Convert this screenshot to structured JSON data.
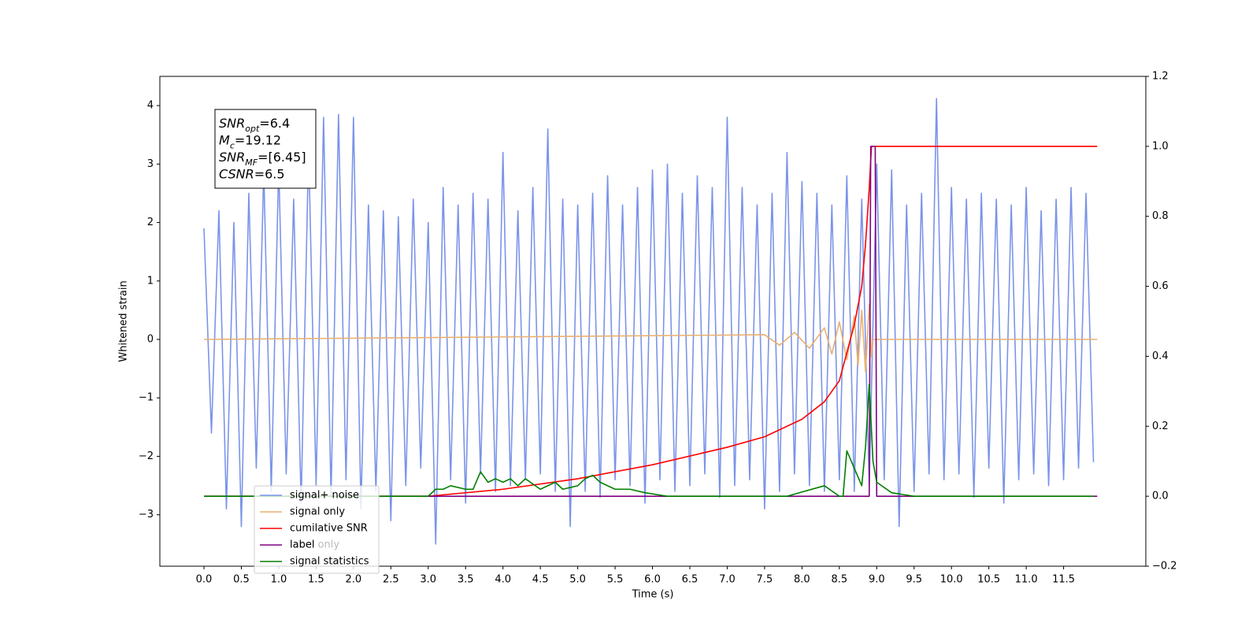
{
  "chart_data": {
    "type": "line",
    "xlabel": "Time (s)",
    "ylabel": "Whitened strain",
    "xlim": [
      -0.59,
      12.6
    ],
    "ylim": [
      -3.88,
      4.5
    ],
    "y2lim": [
      -0.2,
      1.2
    ],
    "xticks": [
      {
        "value": 0,
        "label": "0.0"
      },
      {
        "value": 0.5,
        "label": "0.5"
      },
      {
        "value": 1,
        "label": "1.0"
      },
      {
        "value": 1.5,
        "label": "1.5"
      },
      {
        "value": 2,
        "label": "2.0"
      },
      {
        "value": 2.5,
        "label": "2.5"
      },
      {
        "value": 3,
        "label": "3.0"
      },
      {
        "value": 3.5,
        "label": "3.5"
      },
      {
        "value": 4,
        "label": "4.0"
      },
      {
        "value": 4.5,
        "label": "4.5"
      },
      {
        "value": 5,
        "label": "5.0"
      },
      {
        "value": 5.5,
        "label": "5.5"
      },
      {
        "value": 6,
        "label": "6.0"
      },
      {
        "value": 6.5,
        "label": "6.5"
      },
      {
        "value": 7,
        "label": "7.0"
      },
      {
        "value": 7.5,
        "label": "7.5"
      },
      {
        "value": 8,
        "label": "8.0"
      },
      {
        "value": 8.5,
        "label": "8.5"
      },
      {
        "value": 9,
        "label": "9.0"
      },
      {
        "value": 9.5,
        "label": "9.5"
      },
      {
        "value": 10,
        "label": "10.0"
      },
      {
        "value": 10.5,
        "label": "10.5"
      },
      {
        "value": 11,
        "label": "11.0"
      },
      {
        "value": 11.5,
        "label": "11.5"
      }
    ],
    "yticks": [
      {
        "value": -3,
        "label": "−3"
      },
      {
        "value": -2,
        "label": "−2"
      },
      {
        "value": -1,
        "label": "−1"
      },
      0,
      1,
      2,
      3,
      4
    ],
    "y2ticks": [
      {
        "value": -0.2,
        "label": "−0.2"
      },
      {
        "value": 0,
        "label": "0.0"
      },
      {
        "value": 0.2,
        "label": "0.2"
      },
      {
        "value": 0.4,
        "label": "0.4"
      },
      {
        "value": 0.6,
        "label": "0.6"
      },
      {
        "value": 0.8,
        "label": "0.8"
      },
      {
        "value": 1,
        "label": "1.0"
      },
      {
        "value": 1.2,
        "label": "1.2"
      }
    ],
    "legend": "lower left",
    "hidden_legend_entry": "label only",
    "stats_box": [
      {
        "name": "SNR",
        "sub": "opt",
        "text": "=6.4"
      },
      {
        "name": "M",
        "sub": "c",
        "text": "=19.12"
      },
      {
        "name": "SNR",
        "sub": "MF",
        "text": "=[6.45]"
      },
      {
        "name": "CSNR",
        "text": "=6.5"
      }
    ],
    "series": [
      {
        "name": "signal+ noise",
        "color": "#7b94e8",
        "axis": "y",
        "x": [
          0,
          0.1,
          0.2,
          0.3,
          0.4,
          0.5,
          0.6,
          0.7,
          0.8,
          0.9,
          1,
          1.1,
          1.2,
          1.3,
          1.4,
          1.5,
          1.6,
          1.7,
          1.8,
          1.9,
          2,
          2.1,
          2.2,
          2.3,
          2.4,
          2.5,
          2.6,
          2.7,
          2.8,
          2.9,
          3,
          3.1,
          3.2,
          3.3,
          3.4,
          3.5,
          3.6,
          3.7,
          3.8,
          3.9,
          4,
          4.1,
          4.2,
          4.3,
          4.4,
          4.5,
          4.6,
          4.7,
          4.8,
          4.9,
          5,
          5.1,
          5.2,
          5.3,
          5.4,
          5.5,
          5.6,
          5.7,
          5.8,
          5.9,
          6,
          6.1,
          6.2,
          6.3,
          6.4,
          6.5,
          6.6,
          6.7,
          6.8,
          6.9,
          7,
          7.1,
          7.2,
          7.3,
          7.4,
          7.5,
          7.6,
          7.7,
          7.8,
          7.9,
          8,
          8.1,
          8.2,
          8.3,
          8.4,
          8.5,
          8.6,
          8.7,
          8.8,
          8.9,
          9,
          9.1,
          9.2,
          9.3,
          9.4,
          9.5,
          9.6,
          9.7,
          9.8,
          9.9,
          10,
          10.1,
          10.2,
          10.3,
          10.4,
          10.5,
          10.6,
          10.7,
          10.8,
          10.9,
          11,
          11.1,
          11.2,
          11.3,
          11.4,
          11.5,
          11.6,
          11.7,
          11.8,
          11.9
        ],
        "values": [
          1.9,
          -1.6,
          2.2,
          -2.9,
          2.0,
          -3.2,
          2.5,
          -2.2,
          2.9,
          -2.6,
          3.0,
          -2.3,
          2.4,
          -2.8,
          3.3,
          -2.5,
          3.8,
          -2.7,
          3.85,
          -2.4,
          3.8,
          -2.9,
          2.3,
          -2.6,
          2.2,
          -3.1,
          2.1,
          -2.5,
          2.4,
          -2.2,
          2.0,
          -3.5,
          2.6,
          -2.4,
          2.3,
          -2.8,
          2.5,
          -2.3,
          2.4,
          -2.6,
          3.2,
          -2.5,
          2.2,
          -2.4,
          2.6,
          -2.3,
          3.6,
          -2.6,
          2.4,
          -3.2,
          2.3,
          -2.6,
          2.5,
          -2.7,
          2.8,
          -2.4,
          2.3,
          -2.5,
          2.6,
          -2.8,
          2.9,
          -2.4,
          3.0,
          -2.6,
          2.5,
          -2.5,
          2.8,
          -2.3,
          2.6,
          -2.7,
          3.8,
          -2.5,
          2.6,
          -2.4,
          2.3,
          -2.9,
          2.5,
          -2.6,
          3.2,
          -2.3,
          2.7,
          -2.5,
          2.5,
          -2.6,
          2.3,
          -2.4,
          2.8,
          -2.6,
          2.4,
          -2.5,
          3.0,
          -2.4,
          2.9,
          -3.2,
          2.3,
          -2.6,
          2.5,
          -2.3,
          4.12,
          -2.4,
          2.6,
          -2.3,
          2.4,
          -2.7,
          2.5,
          -2.2,
          2.4,
          -2.8,
          2.3,
          -2.4,
          2.6,
          -2.3,
          2.2,
          -2.5,
          2.4,
          -2.4,
          2.6,
          -2.2,
          2.5,
          -2.1
        ]
      },
      {
        "name": "signal only",
        "color": "#e8b070",
        "axis": "y",
        "x": [
          0,
          7.5,
          7.7,
          7.9,
          8.1,
          8.3,
          8.4,
          8.5,
          8.6,
          8.7,
          8.75,
          8.8,
          8.85,
          8.9,
          8.93,
          8.95,
          11.95
        ],
        "values": [
          0,
          0.08,
          -0.1,
          0.12,
          -0.15,
          0.2,
          -0.25,
          0.3,
          -0.35,
          0.4,
          -0.45,
          0.5,
          -0.55,
          0.6,
          -0.3,
          0,
          0
        ]
      },
      {
        "name": "cumilative SNR",
        "color": "#ff0000",
        "axis": "y2",
        "x": [
          0,
          3,
          4,
          5,
          6,
          7,
          7.5,
          8,
          8.3,
          8.5,
          8.7,
          8.8,
          8.85,
          8.9,
          8.93,
          8.95,
          11.95
        ],
        "values": [
          0,
          0,
          0.02,
          0.05,
          0.09,
          0.14,
          0.17,
          0.22,
          0.27,
          0.33,
          0.49,
          0.6,
          0.72,
          0.88,
          1.0,
          1.0,
          1.0
        ]
      },
      {
        "name": "label",
        "color": "#800080",
        "axis": "y2",
        "x": [
          0,
          8.9,
          8.92,
          8.98,
          9.0,
          11.95
        ],
        "values": [
          0,
          0,
          1,
          1,
          0,
          0
        ]
      },
      {
        "name": "signal statistics",
        "color": "#008000",
        "axis": "y2",
        "x": [
          0,
          3.0,
          3.1,
          3.2,
          3.3,
          3.5,
          3.6,
          3.7,
          3.8,
          3.9,
          4.0,
          4.1,
          4.2,
          4.3,
          4.5,
          4.7,
          4.8,
          5.0,
          5.1,
          5.2,
          5.3,
          5.5,
          5.7,
          5.9,
          6.2,
          7.8,
          8.3,
          8.5,
          8.55,
          8.6,
          8.7,
          8.8,
          8.85,
          8.9,
          8.95,
          9.0,
          9.2,
          9.5,
          11.9
        ],
        "values": [
          0,
          0,
          0.02,
          0.02,
          0.03,
          0.02,
          0.02,
          0.07,
          0.04,
          0.05,
          0.04,
          0.05,
          0.03,
          0.05,
          0.02,
          0.04,
          0.02,
          0.03,
          0.05,
          0.06,
          0.04,
          0.02,
          0.02,
          0.01,
          0,
          0,
          0.03,
          0,
          0,
          0.13,
          0.08,
          0.03,
          0.14,
          0.32,
          0.1,
          0.04,
          0.01,
          0,
          0
        ]
      }
    ]
  }
}
